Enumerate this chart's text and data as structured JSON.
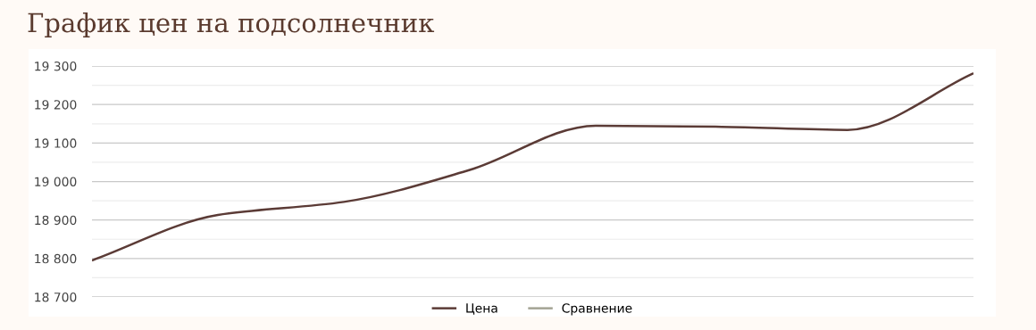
{
  "chart_data": {
    "type": "line",
    "title": "График цен на подсолнечник",
    "categories": [
      null,
      null,
      null,
      null,
      null,
      null,
      null,
      null
    ],
    "series": [
      {
        "name": "Цена",
        "color": "#5b3b36",
        "values": [
          18795,
          18913,
          18947,
          19030,
          19145,
          19142,
          19134,
          19281
        ]
      },
      {
        "name": "Сравнение",
        "color": "#a3a394",
        "values": [
          null,
          null,
          null,
          null,
          null,
          null,
          null,
          null
        ]
      }
    ],
    "ylim": [
      18700,
      19300
    ],
    "yticks": [
      {
        "value": 18700,
        "label": "18 700"
      },
      {
        "value": 18750,
        "label": null
      },
      {
        "value": 18800,
        "label": "18 800"
      },
      {
        "value": 18850,
        "label": null
      },
      {
        "value": 18900,
        "label": "18 900"
      },
      {
        "value": 18950,
        "label": null
      },
      {
        "value": 19000,
        "label": "19 000"
      },
      {
        "value": 19050,
        "label": null
      },
      {
        "value": 19100,
        "label": "19 100"
      },
      {
        "value": 19150,
        "label": null
      },
      {
        "value": 19200,
        "label": "19 200"
      },
      {
        "value": 19250,
        "label": null
      },
      {
        "value": 19300,
        "label": "19 300"
      }
    ],
    "grid": "y",
    "legend": "bottom",
    "marker": "none",
    "line_style": "solid"
  }
}
